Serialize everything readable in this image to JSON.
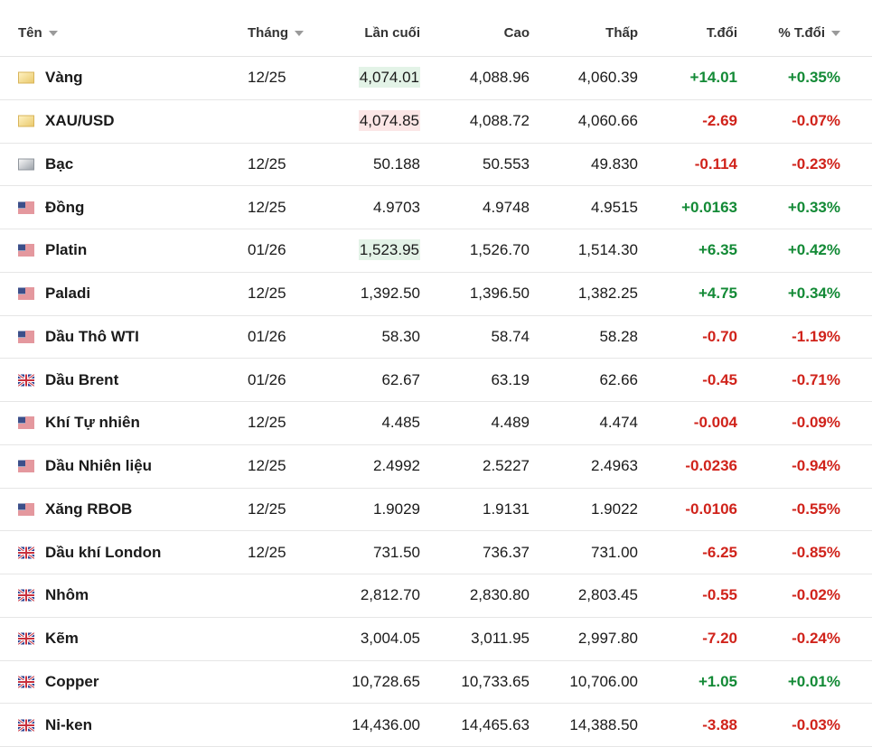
{
  "table": {
    "header": [
      "Tên",
      "Tháng",
      "Lần cuối",
      "Cao",
      "Thấp",
      "T.đổi",
      "% T.đổi"
    ],
    "rows": [
      {
        "name": "Vàng",
        "month": "12/25",
        "last": "4,074.01",
        "high": "4,088.96",
        "low": "4,060.39",
        "change": "+14.01",
        "change_pct": "+0.35%"
      },
      {
        "name": "XAU/USD",
        "last": "4,074.85",
        "high": "4,088.72",
        "low": "4,060.66",
        "change": "-2.69",
        "change_pct": "-0.07%"
      },
      {
        "name": "Bạc",
        "month": "12/25",
        "last": "50.188",
        "high": "50.553",
        "low": "49.830",
        "change": "-0.114",
        "change_pct": "-0.23%"
      },
      {
        "name": "Đồng",
        "month": "12/25",
        "last": "4.9703",
        "high": "4.9748",
        "low": "4.9515",
        "change": "+0.0163",
        "change_pct": "+0.33%"
      },
      {
        "name": "Platin",
        "month": "01/26",
        "last": "1,523.95",
        "high": "1,526.70",
        "low": "1,514.30",
        "change": "+6.35",
        "change_pct": "+0.42%"
      },
      {
        "name": "Paladi",
        "month": "12/25",
        "last": "1,392.50",
        "high": "1,396.50",
        "low": "1,382.25",
        "change": "+4.75",
        "change_pct": "+0.34%"
      },
      {
        "name": "Dầu Thô WTI",
        "month": "01/26",
        "last": "58.30",
        "high": "58.74",
        "low": "58.28",
        "change": "-0.70",
        "change_pct": "-1.19%"
      },
      {
        "name": "Dầu Brent",
        "month": "01/26",
        "last": "62.67",
        "high": "63.19",
        "low": "62.66",
        "change": "-0.45",
        "change_pct": "-0.71%"
      },
      {
        "name": "Khí Tự nhiên",
        "month": "12/25",
        "last": "4.485",
        "high": "4.489",
        "low": "4.474",
        "change": "-0.004",
        "change_pct": "-0.09%"
      },
      {
        "name": "Dầu Nhiên liệu",
        "month": "12/25",
        "last": "2.4992",
        "high": "2.5227",
        "low": "2.4963",
        "change": "-0.0236",
        "change_pct": "-0.94%"
      },
      {
        "name": "Xăng RBOB",
        "month": "12/25",
        "last": "1.9029",
        "high": "1.9131",
        "low": "1.9022",
        "change": "-0.0106",
        "change_pct": "-0.55%"
      },
      {
        "name": "Dầu khí London",
        "month": "12/25",
        "last": "731.50",
        "high": "736.37",
        "low": "731.00",
        "change": "-6.25",
        "change_pct": "-0.85%"
      },
      {
        "name": "Nhôm",
        "last": "2,812.70",
        "high": "2,830.80",
        "low": "2,803.45",
        "change": "-0.55",
        "change_pct": "-0.02%"
      },
      {
        "name": "Kẽm",
        "last": "3,004.05",
        "high": "3,011.95",
        "low": "2,997.80",
        "change": "-7.20",
        "change_pct": "-0.24%"
      },
      {
        "name": "Copper",
        "last": "10,728.65",
        "high": "10,733.65",
        "low": "10,706.00",
        "change": "+1.05",
        "change_pct": "+0.01%"
      },
      {
        "name": "Ni-ken",
        "last": "14,436.00",
        "high": "14,465.63",
        "low": "14,388.50",
        "change": "-3.88",
        "change_pct": "-0.03%"
      }
    ]
  }
}
